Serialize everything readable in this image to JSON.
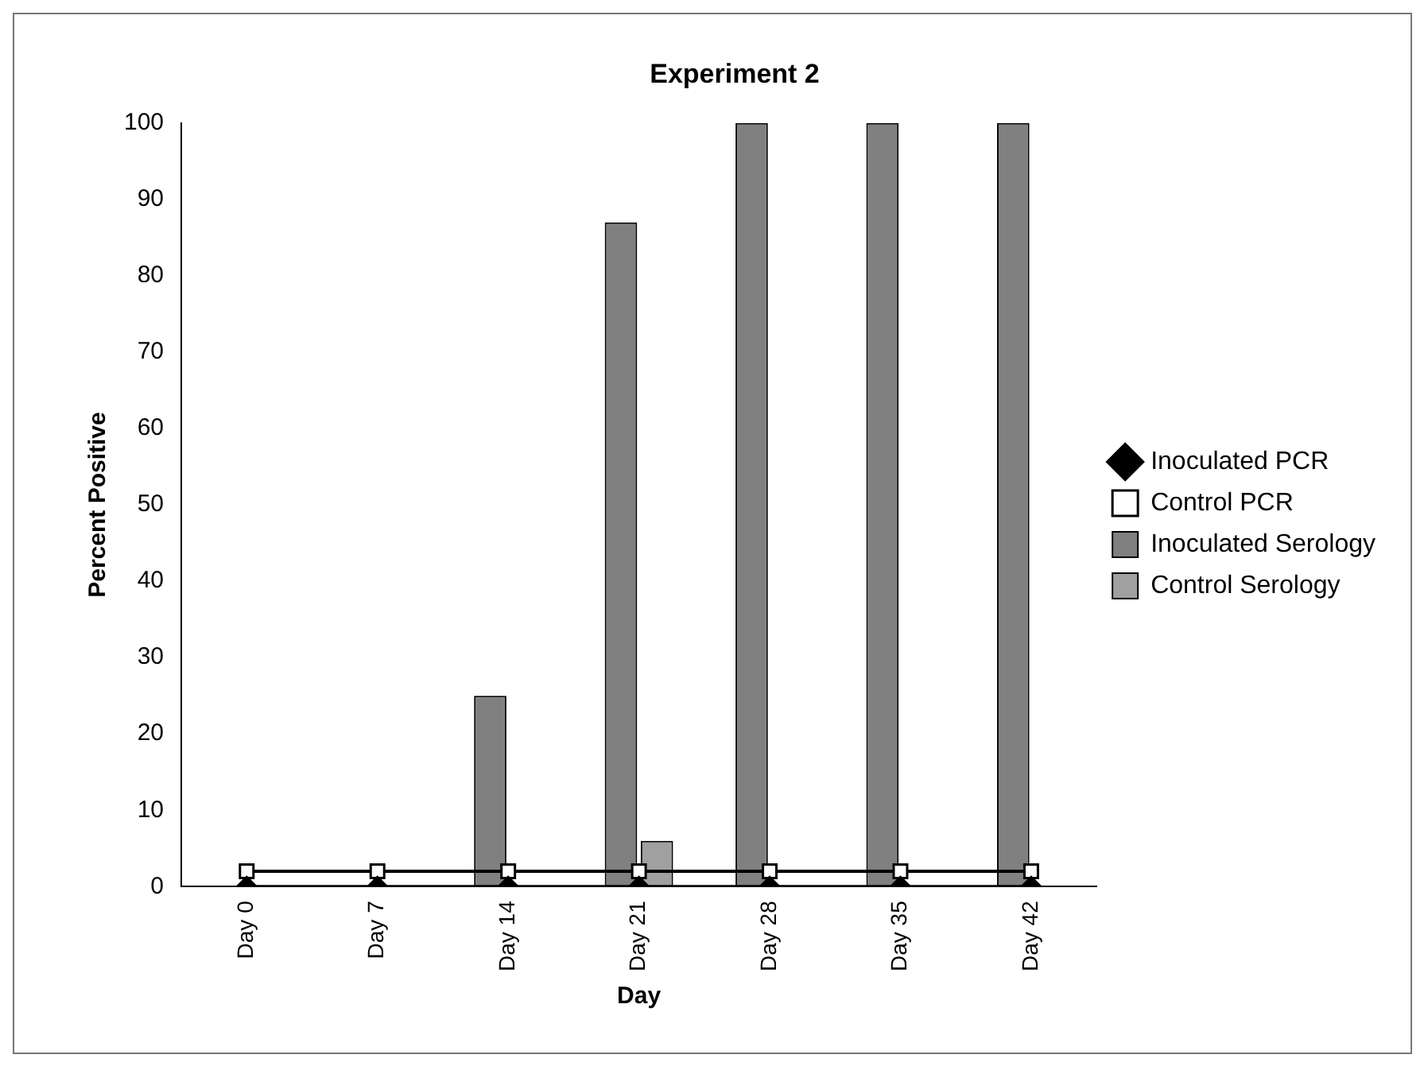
{
  "chart_data": {
    "type": "bar",
    "title": "Experiment 2",
    "xlabel": "Day",
    "ylabel": "Percent Positive",
    "categories": [
      "Day 0",
      "Day 7",
      "Day 14",
      "Day 21",
      "Day 28",
      "Day 35",
      "Day 42"
    ],
    "series": [
      {
        "name": "Inoculated Serology",
        "color": "#808080",
        "values": [
          0,
          0,
          25,
          87,
          100,
          100,
          100
        ]
      },
      {
        "name": "Control Serology",
        "color": "#a0a0a0",
        "values": [
          0,
          0,
          0,
          6,
          0,
          0,
          0
        ]
      },
      {
        "name": "Inoculated PCR",
        "type": "line",
        "color": "#000000",
        "marker": "diamond",
        "values": [
          0,
          0,
          0,
          0,
          0,
          0,
          0
        ]
      },
      {
        "name": "Control PCR",
        "type": "line",
        "color": "#000000",
        "marker": "square",
        "values": [
          2,
          2,
          2,
          2,
          2,
          2,
          2
        ]
      }
    ],
    "ylim": [
      0,
      100
    ],
    "yticks": [
      0,
      10,
      20,
      30,
      40,
      50,
      60,
      70,
      80,
      90,
      100
    ],
    "grid": false,
    "legend": "right"
  }
}
